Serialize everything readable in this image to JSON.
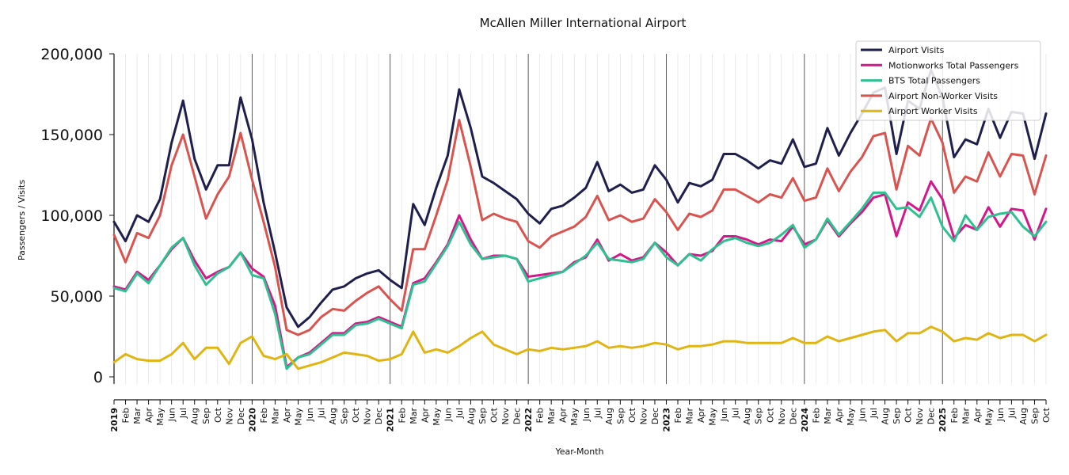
{
  "chart_data": {
    "type": "line",
    "title": "McAllen Miller International Airport",
    "xlabel": "Year-Month",
    "ylabel": "Passengers / Visits",
    "ylim": [
      -5000,
      200000
    ],
    "yticks": [
      0,
      50000,
      100000,
      150000,
      200000
    ],
    "ytick_labels": [
      "0",
      "50,000",
      "100,000",
      "150,000",
      "200,000"
    ],
    "grid": "vertical monthly gridlines; darker lines at each January",
    "legend_position": "top-right",
    "x": [
      "2019",
      "Feb",
      "Mar",
      "Apr",
      "May",
      "Jun",
      "Jul",
      "Aug",
      "Sep",
      "Oct",
      "Nov",
      "Dec",
      "2020",
      "Feb",
      "Mar",
      "Apr",
      "May",
      "Jun",
      "Jul",
      "Aug",
      "Sep",
      "Oct",
      "Nov",
      "Dec",
      "2021",
      "Feb",
      "Mar",
      "Apr",
      "May",
      "Jun",
      "Jul",
      "Aug",
      "Sep",
      "Oct",
      "Nov",
      "Dec",
      "2022",
      "Feb",
      "Mar",
      "Apr",
      "May",
      "Jun",
      "Jul",
      "Aug",
      "Sep",
      "Oct",
      "Nov",
      "Dec",
      "2023",
      "Feb",
      "Mar",
      "Apr",
      "May",
      "Jun",
      "Jul",
      "Aug",
      "Sep",
      "Oct",
      "Nov",
      "Dec",
      "2024",
      "Feb",
      "Mar",
      "Apr",
      "May",
      "Jun",
      "Jul",
      "Aug",
      "Sep",
      "Oct",
      "Nov",
      "Dec",
      "2025",
      "Feb",
      "Mar",
      "Apr",
      "May",
      "Jun",
      "Jul",
      "Aug",
      "Sep",
      "Oct"
    ],
    "series": [
      {
        "name": "Airport Visits",
        "color": "#1f1f4e",
        "values": [
          96000,
          84000,
          100000,
          96000,
          110000,
          145000,
          171000,
          135000,
          116000,
          131000,
          131000,
          173000,
          147000,
          108000,
          77000,
          43000,
          31000,
          37000,
          46000,
          54000,
          56000,
          61000,
          64000,
          66000,
          60000,
          55000,
          107000,
          94000,
          117000,
          137000,
          178000,
          154000,
          124000,
          120000,
          115000,
          110000,
          101000,
          95000,
          104000,
          106000,
          111000,
          117000,
          133000,
          115000,
          119000,
          114000,
          116000,
          131000,
          122000,
          108000,
          120000,
          118000,
          122000,
          138000,
          138000,
          134000,
          129000,
          134000,
          132000,
          147000,
          130000,
          132000,
          154000,
          137000,
          151000,
          163000,
          176000,
          179000,
          138000,
          171000,
          166000,
          190000,
          173000,
          136000,
          147000,
          144000,
          166000,
          148000,
          164000,
          163000,
          135000,
          163000
        ]
      },
      {
        "name": "Motionworks Total Passengers",
        "color": "#d4178a",
        "values": [
          56000,
          54000,
          65000,
          60000,
          69000,
          79000,
          86000,
          72000,
          61000,
          65000,
          68000,
          77000,
          67000,
          62000,
          44000,
          6000,
          12000,
          15000,
          21000,
          27000,
          27000,
          33000,
          34000,
          37000,
          34000,
          31000,
          58000,
          61000,
          71000,
          82000,
          100000,
          85000,
          73000,
          75000,
          75000,
          73000,
          62000,
          63000,
          64000,
          65000,
          71000,
          74000,
          85000,
          72000,
          76000,
          72000,
          74000,
          83000,
          77000,
          69000,
          76000,
          75000,
          78000,
          87000,
          87000,
          85000,
          82000,
          85000,
          84000,
          93000,
          82000,
          85000,
          97000,
          87000,
          95000,
          102000,
          111000,
          113000,
          87000,
          108000,
          103000,
          121000,
          110000,
          86000,
          94000,
          91000,
          105000,
          93000,
          104000,
          103000,
          85000,
          104000
        ]
      },
      {
        "name": "BTS Total Passengers",
        "color": "#2ec08f",
        "values": [
          55000,
          53000,
          64000,
          58000,
          69000,
          80000,
          86000,
          69000,
          57000,
          64000,
          68000,
          77000,
          63000,
          61000,
          39000,
          5000,
          12000,
          14000,
          20000,
          26000,
          26000,
          32000,
          33000,
          36000,
          33000,
          30000,
          57000,
          59000,
          70000,
          81000,
          96000,
          82000,
          73000,
          74000,
          75000,
          73000,
          59000,
          61000,
          63000,
          65000,
          70000,
          75000,
          83000,
          73000,
          72000,
          71000,
          73000,
          83000,
          74000,
          69000,
          76000,
          72000,
          79000,
          84000,
          86000,
          83000,
          81000,
          83000,
          88000,
          94000,
          80000,
          85000,
          98000,
          88000,
          96000,
          104000,
          114000,
          114000,
          104000,
          105000,
          99000,
          111000,
          93000,
          84000,
          100000,
          91000,
          99000,
          101000,
          102000,
          93000,
          87000,
          96000
        ]
      },
      {
        "name": "Airport Non-Worker Visits",
        "color": "#d9534f",
        "values": [
          88000,
          71000,
          89000,
          86000,
          100000,
          131000,
          150000,
          124000,
          98000,
          113000,
          124000,
          151000,
          122000,
          96000,
          68000,
          29000,
          26000,
          29000,
          37000,
          42000,
          41000,
          47000,
          52000,
          56000,
          48000,
          41000,
          79000,
          79000,
          100000,
          122000,
          159000,
          130000,
          97000,
          101000,
          98000,
          96000,
          84000,
          80000,
          87000,
          90000,
          93000,
          99000,
          112000,
          97000,
          100000,
          96000,
          98000,
          110000,
          102000,
          91000,
          101000,
          99000,
          103000,
          116000,
          116000,
          112000,
          108000,
          113000,
          111000,
          123000,
          109000,
          111000,
          129000,
          115000,
          127000,
          136000,
          149000,
          151000,
          116000,
          143000,
          137000,
          160000,
          145000,
          114000,
          124000,
          121000,
          139000,
          124000,
          138000,
          137000,
          113000,
          137000
        ]
      },
      {
        "name": "Airport Worker Visits",
        "color": "#e0b512",
        "values": [
          9000,
          14000,
          11000,
          10000,
          10000,
          14000,
          21000,
          11000,
          18000,
          18000,
          8000,
          21000,
          25000,
          13000,
          11000,
          14000,
          5000,
          7000,
          9000,
          12000,
          15000,
          14000,
          13000,
          10000,
          11000,
          14000,
          28000,
          15000,
          17000,
          15000,
          19000,
          24000,
          28000,
          20000,
          17000,
          14000,
          17000,
          16000,
          18000,
          17000,
          18000,
          19000,
          22000,
          18000,
          19000,
          18000,
          19000,
          21000,
          20000,
          17000,
          19000,
          19000,
          20000,
          22000,
          22000,
          21000,
          21000,
          21000,
          21000,
          24000,
          21000,
          21000,
          25000,
          22000,
          24000,
          26000,
          28000,
          29000,
          22000,
          27000,
          27000,
          31000,
          28000,
          22000,
          24000,
          23000,
          27000,
          24000,
          26000,
          26000,
          22000,
          26000
        ]
      }
    ]
  }
}
